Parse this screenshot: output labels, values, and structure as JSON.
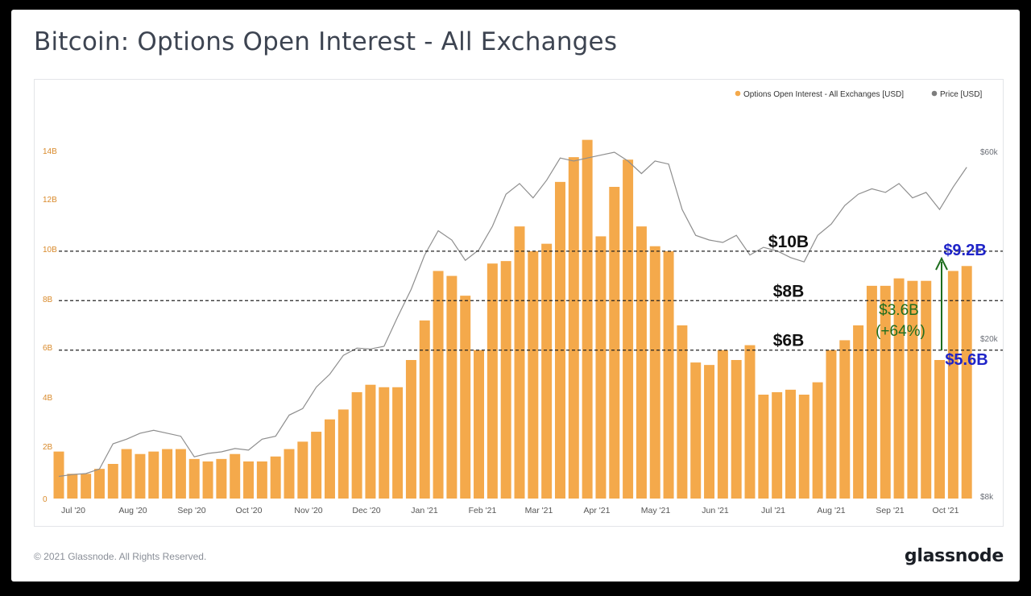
{
  "header": {
    "title": "Bitcoin: Options Open Interest - All Exchanges"
  },
  "footer": {
    "copyright": "© 2021 Glassnode. All Rights Reserved.",
    "brand": "glassnode"
  },
  "colors": {
    "bars": "#f4a94b",
    "price_line": "#8e8e8e",
    "annotation_green": "#1f6e1f",
    "annotation_blue": "#1f24c8",
    "left_axis_text": "#d98a2b",
    "right_axis_text": "#6b6f77"
  },
  "chart_data": {
    "type": "bar",
    "grid": false,
    "legend_position": "top-right",
    "legend": [
      {
        "label": "Options Open Interest - All Exchanges [USD]",
        "color": "#f4a94b"
      },
      {
        "label": "Price [USD]",
        "color": "#7d7d7d"
      }
    ],
    "x_ticks": [
      "Jul '20",
      "Aug '20",
      "Sep '20",
      "Oct '20",
      "Nov '20",
      "Dec '20",
      "Jan '21",
      "Feb '21",
      "Mar '21",
      "Apr '21",
      "May '21",
      "Jun '21",
      "Jul '21",
      "Aug '21",
      "Sep '21",
      "Oct '21"
    ],
    "left_axis": {
      "ticks": [
        "0",
        "2B",
        "4B",
        "6B",
        "8B",
        "10B",
        "12B",
        "14B"
      ],
      "ylim": [
        0,
        15
      ]
    },
    "right_axis": {
      "scale": "log",
      "ticks": [
        "$8k",
        "$20k",
        "$60k"
      ]
    },
    "reference_lines": [
      {
        "value": 10,
        "label": "$10B"
      },
      {
        "value": 8,
        "label": "$8B"
      },
      {
        "value": 6,
        "label": "$6B"
      }
    ],
    "annotations": {
      "high": "$9.2B",
      "low": "$5.6B",
      "change_line1": "$3.6B",
      "change_line2": "(+64%)"
    },
    "series": [
      {
        "name": "Options Open Interest - All Exchanges [USD]",
        "unit": "B USD",
        "axis": "left",
        "x": [
          "2020-06-28",
          "2020-07-05",
          "2020-07-12",
          "2020-07-19",
          "2020-07-26",
          "2020-08-02",
          "2020-08-09",
          "2020-08-16",
          "2020-08-23",
          "2020-08-30",
          "2020-09-06",
          "2020-09-13",
          "2020-09-20",
          "2020-09-27",
          "2020-10-04",
          "2020-10-11",
          "2020-10-18",
          "2020-10-25",
          "2020-11-01",
          "2020-11-08",
          "2020-11-15",
          "2020-11-22",
          "2020-11-29",
          "2020-12-06",
          "2020-12-13",
          "2020-12-20",
          "2020-12-27",
          "2021-01-03",
          "2021-01-10",
          "2021-01-17",
          "2021-01-24",
          "2021-01-31",
          "2021-02-07",
          "2021-02-14",
          "2021-02-21",
          "2021-02-28",
          "2021-03-07",
          "2021-03-14",
          "2021-03-21",
          "2021-03-28",
          "2021-04-04",
          "2021-04-11",
          "2021-04-18",
          "2021-04-25",
          "2021-05-02",
          "2021-05-09",
          "2021-05-16",
          "2021-05-23",
          "2021-05-30",
          "2021-06-06",
          "2021-06-13",
          "2021-06-20",
          "2021-06-27",
          "2021-07-04",
          "2021-07-11",
          "2021-07-18",
          "2021-07-25",
          "2021-08-01",
          "2021-08-08",
          "2021-08-15",
          "2021-08-22",
          "2021-08-29",
          "2021-09-05",
          "2021-09-12",
          "2021-09-19",
          "2021-09-26",
          "2021-10-03",
          "2021-10-10"
        ],
        "values": [
          1.9,
          1.0,
          1.0,
          1.2,
          1.4,
          2.0,
          1.8,
          1.9,
          2.0,
          2.0,
          1.6,
          1.5,
          1.6,
          1.8,
          1.5,
          1.5,
          1.7,
          2.0,
          2.3,
          2.7,
          3.2,
          3.6,
          4.3,
          4.6,
          4.5,
          4.5,
          5.6,
          7.2,
          9.2,
          9.0,
          8.2,
          6.0,
          9.5,
          9.6,
          11.0,
          10.0,
          10.3,
          12.8,
          13.8,
          14.5,
          10.6,
          12.6,
          13.7,
          11.0,
          10.2,
          10.0,
          7.0,
          5.5,
          5.4,
          6.0,
          5.6,
          6.2,
          4.2,
          4.3,
          4.4,
          4.2,
          4.7,
          6.0,
          6.4,
          7.0,
          8.6,
          8.6,
          8.9,
          8.8,
          8.8,
          5.6,
          9.2,
          9.4
        ]
      },
      {
        "name": "Price [USD]",
        "unit": "USD",
        "axis": "right",
        "x": [
          "2020-06-28",
          "2020-07-05",
          "2020-07-12",
          "2020-07-19",
          "2020-07-26",
          "2020-08-02",
          "2020-08-09",
          "2020-08-16",
          "2020-08-23",
          "2020-08-30",
          "2020-09-06",
          "2020-09-13",
          "2020-09-20",
          "2020-09-27",
          "2020-10-04",
          "2020-10-11",
          "2020-10-18",
          "2020-10-25",
          "2020-11-01",
          "2020-11-08",
          "2020-11-15",
          "2020-11-22",
          "2020-11-29",
          "2020-12-06",
          "2020-12-13",
          "2020-12-20",
          "2020-12-27",
          "2021-01-03",
          "2021-01-10",
          "2021-01-17",
          "2021-01-24",
          "2021-01-31",
          "2021-02-07",
          "2021-02-14",
          "2021-02-21",
          "2021-02-28",
          "2021-03-07",
          "2021-03-14",
          "2021-03-21",
          "2021-03-28",
          "2021-04-04",
          "2021-04-11",
          "2021-04-18",
          "2021-04-25",
          "2021-05-02",
          "2021-05-09",
          "2021-05-16",
          "2021-05-23",
          "2021-05-30",
          "2021-06-06",
          "2021-06-13",
          "2021-06-20",
          "2021-06-27",
          "2021-07-04",
          "2021-07-11",
          "2021-07-18",
          "2021-07-25",
          "2021-08-01",
          "2021-08-08",
          "2021-08-15",
          "2021-08-22",
          "2021-08-29",
          "2021-09-05",
          "2021-09-12",
          "2021-09-19",
          "2021-09-26",
          "2021-10-03",
          "2021-10-10"
        ],
        "values": [
          9100,
          9200,
          9250,
          9500,
          11000,
          11300,
          11700,
          11900,
          11700,
          11500,
          10200,
          10400,
          10500,
          10700,
          10600,
          11300,
          11500,
          13000,
          13500,
          15300,
          16500,
          18400,
          19200,
          19100,
          19400,
          23000,
          27000,
          33000,
          38000,
          36000,
          32000,
          34000,
          39000,
          47000,
          50000,
          46000,
          51000,
          58000,
          57000,
          58000,
          59000,
          60000,
          57000,
          53000,
          57000,
          56000,
          43000,
          37000,
          36000,
          35500,
          37000,
          33000,
          34500,
          33800,
          32500,
          31700,
          37000,
          39500,
          44000,
          47000,
          48500,
          47500,
          50000,
          46000,
          47500,
          43000,
          49000,
          55000
        ]
      }
    ]
  }
}
